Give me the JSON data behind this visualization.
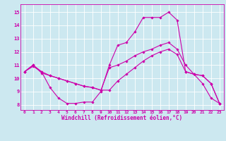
{
  "xlabel": "Windchill (Refroidissement éolien,°C)",
  "bg_color": "#cce8f0",
  "line_color": "#cc00aa",
  "grid_color": "#ffffff",
  "x_ticks": [
    0,
    1,
    2,
    3,
    4,
    5,
    6,
    7,
    8,
    9,
    10,
    11,
    12,
    13,
    14,
    15,
    16,
    17,
    18,
    19,
    20,
    21,
    22,
    23
  ],
  "y_ticks": [
    8,
    9,
    10,
    11,
    12,
    13,
    14,
    15
  ],
  "ylim": [
    7.6,
    15.6
  ],
  "xlim": [
    -0.5,
    23.5
  ],
  "line1_y": [
    10.5,
    10.9,
    10.5,
    9.3,
    8.5,
    8.1,
    8.1,
    8.2,
    8.2,
    9.0,
    11.0,
    12.5,
    12.7,
    13.5,
    14.6,
    14.6,
    14.6,
    15.0,
    14.4,
    10.5,
    10.3,
    9.6,
    8.5,
    8.1
  ],
  "line2_y": [
    10.5,
    11.0,
    10.5,
    10.2,
    10.0,
    9.8,
    9.6,
    9.4,
    9.3,
    9.1,
    10.8,
    11.0,
    11.3,
    11.7,
    12.0,
    12.2,
    12.5,
    12.7,
    12.2,
    11.0,
    10.3,
    10.2,
    9.6,
    8.1
  ],
  "line3_y": [
    10.5,
    11.0,
    10.4,
    10.2,
    10.0,
    9.8,
    9.6,
    9.4,
    9.3,
    9.1,
    9.1,
    9.8,
    10.3,
    10.8,
    11.3,
    11.7,
    12.0,
    12.2,
    11.8,
    10.5,
    10.3,
    10.2,
    9.6,
    8.1
  ],
  "tick_fontsize": 4.5,
  "xlabel_fontsize": 5.5,
  "marker_size": 1.8,
  "linewidth": 0.8
}
